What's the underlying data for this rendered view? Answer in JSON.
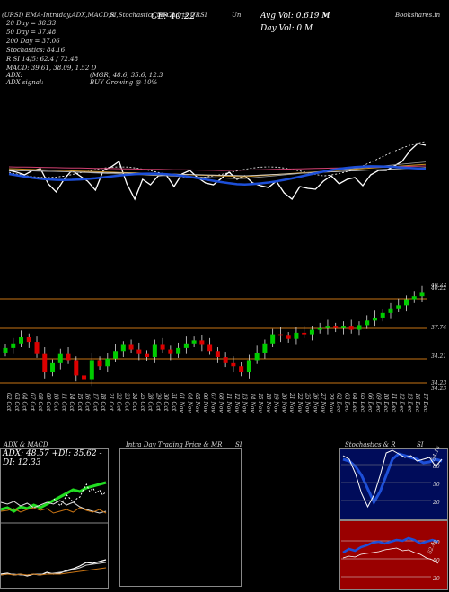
{
  "header": {
    "left_title": "(URSI) EMA-Intraday,ADX,MACD,R",
    "mid_title1": "SI,Stochastics,MR",
    "mid_title2": "SI Charts URSI",
    "mid_title3": "Un",
    "mid_title4": "vl",
    "right_title": "Bookshares.in",
    "close_label": "CL: 40.22",
    "avg_vol": "Avg Vol: 0.619 M",
    "day_vol": "Day Vol: 0   M"
  },
  "indicators": {
    "ema20": "20   Day = 38.33",
    "ema50": "50   Day = 37.48",
    "ema200": "200   Day = 37.06",
    "stochastics": "Stochastics: 84.16",
    "rsi": "R          SI 14/5: 62.4   / 72.48",
    "macd": "MACD: 39.61, 38.09, 1.52   D",
    "adx_label": "ADX:",
    "mrg": "(MGR) 48.6, 35.6, 12.3",
    "adx_signal": "ADX   signal:",
    "buy_signal": "BUY Growing @ 10%"
  },
  "price_axis": [
    "40.22",
    "40.22",
    "37.74",
    "34.21",
    "34.23",
    "34.23"
  ],
  "dates": [
    "02 Oct",
    "03 Oct",
    "04 Oct",
    "07 Oct",
    "08 Oct",
    "09 Oct",
    "10 Oct",
    "11 Oct",
    "14 Oct",
    "15 Oct",
    "16 Oct",
    "17 Oct",
    "18 Oct",
    "21 Oct",
    "22 Oct",
    "23 Oct",
    "24 Oct",
    "25 Oct",
    "28 Oct",
    "29 Oct",
    "30 Oct",
    "31 Oct",
    "01 Nov",
    "04 Nov",
    "05 Nov",
    "06 Nov",
    "07 Nov",
    "08 Nov",
    "11 Nov",
    "12 Nov",
    "13 Nov",
    "14 Nov",
    "15 Nov",
    "18 Nov",
    "19 Nov",
    "20 Nov",
    "21 Nov",
    "22 Nov",
    "25 Nov",
    "26 Nov",
    "27 Nov",
    "29 Nov",
    "02 Dec",
    "03 Dec",
    "04 Dec",
    "05 Dec",
    "06 Dec",
    "09 Dec",
    "10 Dec",
    "11 Dec",
    "12 Dec",
    "13 Dec",
    "16 Dec",
    "17 Dec"
  ],
  "panels": {
    "adx_title": "ADX   & MACD",
    "adx_values": "ADX: 48.57  +DI: 35.62  -DI: 12.33",
    "intraday_title": "Intra Day Trading Price  & MR",
    "intraday_suffix": "SI",
    "stoch_title": "Stochastics & R",
    "stoch_suffix": "SI",
    "stoch_ticks": [
      "80",
      "50",
      "20"
    ],
    "stoch_last": "84.16",
    "rsi_ticks": [
      "80",
      "50",
      "20"
    ],
    "rsi_last": "62.4"
  },
  "colors": {
    "up": "#00cc00",
    "down": "#dd0000",
    "ema_blue": "#1d4fd8",
    "bg_rsi": "#9a0000",
    "bg_stoch": "#000c5a"
  },
  "chart_data": {
    "type": "candlestick",
    "series": [
      {
        "name": "price",
        "values": [
          36.6,
          36.9,
          37.3,
          37.0,
          36.2,
          35.0,
          35.6,
          36.2,
          35.8,
          34.8,
          34.5,
          35.8,
          35.4,
          35.9,
          36.4,
          36.8,
          36.5,
          36.2,
          36.0,
          36.8,
          36.5,
          36.2,
          36.6,
          36.9,
          37.1,
          36.8,
          36.4,
          36.0,
          35.6,
          35.4,
          35.0,
          35.8,
          36.3,
          36.9,
          37.5,
          37.4,
          37.2,
          37.6,
          37.5,
          37.8,
          37.9,
          38.0,
          37.9,
          38.0,
          37.8,
          38.1,
          38.4,
          38.6,
          38.9,
          39.2,
          39.4,
          39.8,
          40.0,
          40.22
        ]
      }
    ]
  }
}
